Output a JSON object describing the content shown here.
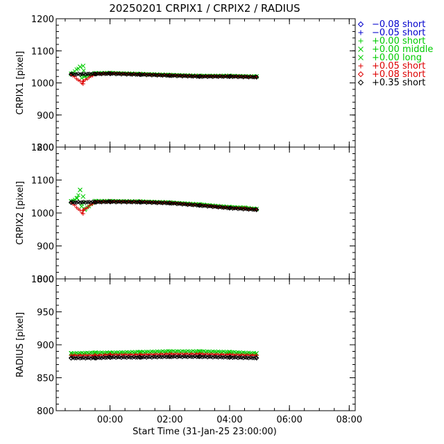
{
  "chart_data": {
    "type": "scatter",
    "title": "20250201  CRPIX1  /  CRPIX2  /  RADIUS",
    "xlabel": "Start Time (31-Jan-25 23:00:00)",
    "x_unit": "hours since 31-Jan-25 23:00:00",
    "xlim": [
      -0.8,
      9.2
    ],
    "xticks": [
      {
        "value": 1,
        "label": "00:00"
      },
      {
        "value": 3,
        "label": "02:00"
      },
      {
        "value": 5,
        "label": "04:00"
      },
      {
        "value": 7,
        "label": "06:00"
      },
      {
        "value": 9,
        "label": "08:00"
      }
    ],
    "legend": {
      "placement": "top-right, outside",
      "entries": [
        {
          "marker": "diamond",
          "color": "#0000cc",
          "label": "−0.08 short"
        },
        {
          "marker": "plus",
          "color": "#0000cc",
          "label": "−0.05 short"
        },
        {
          "marker": "plus",
          "color": "#00cc00",
          "label": "+0.00 short"
        },
        {
          "marker": "cross",
          "color": "#00cc00",
          "label": "+0.00 middle"
        },
        {
          "marker": "cross",
          "color": "#00cc00",
          "label": "+0.00 long"
        },
        {
          "marker": "plus",
          "color": "#dd0000",
          "label": "+0.05 short"
        },
        {
          "marker": "diamond",
          "color": "#dd0000",
          "label": "+0.08 short"
        },
        {
          "marker": "diamond",
          "color": "#000000",
          "label": "+0.35 short"
        }
      ]
    },
    "panels": [
      {
        "name": "crpix1",
        "ylabel": "CRPIX1 [pixel]",
        "ylim": [
          800,
          1200
        ],
        "yticks": [
          800,
          900,
          1000,
          1100,
          1200
        ],
        "series": [
          {
            "color": "#00cc00",
            "x": [
              -0.3,
              0.0,
              0.05,
              0.1,
              0.15,
              0.5,
              1.0,
              2.0,
              3.0,
              4.0,
              5.0,
              5.9
            ],
            "y": [
              1028,
              1050,
              1015,
              1053,
              1020,
              1030,
              1031,
              1028,
              1025,
              1022,
              1022,
              1020
            ]
          },
          {
            "color": "#dd0000",
            "x": [
              -0.3,
              0.1,
              0.1,
              0.5,
              1.0,
              2.0,
              3.0,
              4.0,
              5.0,
              5.9
            ],
            "y": [
              1027,
              997,
              1005,
              1028,
              1030,
              1027,
              1024,
              1021,
              1021,
              1019
            ]
          },
          {
            "color": "#000000",
            "x": [
              -0.3,
              0.5,
              1.0,
              2.0,
              3.0,
              4.0,
              5.0,
              5.9
            ],
            "y": [
              1027,
              1028,
              1029,
              1026,
              1023,
              1020,
              1020,
              1018
            ]
          }
        ]
      },
      {
        "name": "crpix2",
        "ylabel": "CRPIX2 [pixel]",
        "ylim": [
          800,
          1200
        ],
        "yticks": [
          800,
          900,
          1000,
          1100,
          1200
        ],
        "series": [
          {
            "color": "#00cc00",
            "x": [
              -0.3,
              -0.1,
              0.0,
              0.05,
              0.1,
              0.15,
              0.5,
              1.0,
              2.0,
              3.0,
              4.0,
              5.0,
              5.5,
              5.9
            ],
            "y": [
              1035,
              1045,
              1070,
              1020,
              1050,
              1010,
              1036,
              1036,
              1035,
              1032,
              1026,
              1018,
              1016,
              1012
            ]
          },
          {
            "color": "#dd0000",
            "x": [
              -0.3,
              0.1,
              0.1,
              0.5,
              1.0,
              2.0,
              3.0,
              4.0,
              5.0,
              5.5,
              5.9
            ],
            "y": [
              1033,
              998,
              1008,
              1034,
              1035,
              1034,
              1031,
              1024,
              1016,
              1014,
              1011
            ]
          },
          {
            "color": "#000000",
            "x": [
              -0.3,
              0.5,
              1.0,
              2.0,
              3.0,
              4.0,
              5.0,
              5.9
            ],
            "y": [
              1032,
              1033,
              1034,
              1033,
              1030,
              1023,
              1015,
              1010
            ]
          }
        ]
      },
      {
        "name": "radius",
        "ylabel": "RADIUS [pixel]",
        "ylim": [
          800,
          1000
        ],
        "yticks": [
          800,
          850,
          900,
          950,
          1000
        ],
        "series": [
          {
            "color": "#00cc00",
            "x": [
              -0.3,
              0.5,
              1.0,
              2.0,
              3.0,
              4.0,
              5.0,
              5.9
            ],
            "y": [
              887,
              888,
              888,
              889,
              890,
              890,
              889,
              887
            ]
          },
          {
            "color": "#dd0000",
            "x": [
              -0.3,
              0.5,
              1.0,
              2.0,
              3.0,
              4.0,
              5.0,
              5.9
            ],
            "y": [
              884,
              884,
              885,
              885,
              886,
              886,
              885,
              884
            ]
          },
          {
            "color": "#000000",
            "x": [
              -0.3,
              0.5,
              1.0,
              2.0,
              3.0,
              4.0,
              5.0,
              5.9
            ],
            "y": [
              880,
              880,
              881,
              881,
              882,
              882,
              881,
              880
            ]
          }
        ]
      }
    ]
  }
}
